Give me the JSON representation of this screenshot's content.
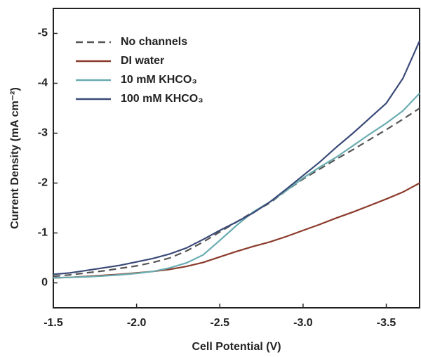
{
  "chart_data": {
    "type": "line",
    "x_label": "Cell Potential (V)",
    "y_label": "Current Density (mA cm⁻²)",
    "x": [
      -1.5,
      -1.6,
      -1.7,
      -1.8,
      -1.9,
      -2.0,
      -2.1,
      -2.2,
      -2.3,
      -2.4,
      -2.5,
      -2.6,
      -2.7,
      -2.8,
      -2.9,
      -3.0,
      -3.1,
      -3.2,
      -3.3,
      -3.4,
      -3.5,
      -3.6,
      -3.7
    ],
    "series": [
      {
        "name": "No channels",
        "color": "#555555",
        "linestyle": "dashed",
        "values": [
          -0.13,
          -0.16,
          -0.2,
          -0.24,
          -0.29,
          -0.34,
          -0.41,
          -0.5,
          -0.64,
          -0.82,
          -1.02,
          -1.22,
          -1.42,
          -1.6,
          -1.85,
          -2.08,
          -2.28,
          -2.48,
          -2.67,
          -2.87,
          -3.07,
          -3.28,
          -3.5
        ]
      },
      {
        "name": "DI water",
        "color": "#8b3a2a",
        "linestyle": "solid",
        "values": [
          -0.1,
          -0.11,
          -0.13,
          -0.15,
          -0.17,
          -0.2,
          -0.23,
          -0.27,
          -0.33,
          -0.41,
          -0.52,
          -0.63,
          -0.73,
          -0.82,
          -0.93,
          -1.05,
          -1.17,
          -1.3,
          -1.42,
          -1.55,
          -1.68,
          -1.82,
          -2.0
        ]
      },
      {
        "name": "10 mM KHCO₃",
        "color": "#6aacb0",
        "linestyle": "solid",
        "values": [
          -0.1,
          -0.11,
          -0.12,
          -0.14,
          -0.16,
          -0.19,
          -0.23,
          -0.3,
          -0.4,
          -0.56,
          -0.85,
          -1.15,
          -1.42,
          -1.62,
          -1.85,
          -2.1,
          -2.32,
          -2.52,
          -2.75,
          -2.98,
          -3.2,
          -3.45,
          -3.8
        ]
      },
      {
        "name": "100 mM KHCO₃",
        "color": "#3a4a78",
        "linestyle": "solid",
        "values": [
          -0.17,
          -0.2,
          -0.25,
          -0.3,
          -0.35,
          -0.42,
          -0.49,
          -0.58,
          -0.7,
          -0.87,
          -1.05,
          -1.22,
          -1.4,
          -1.62,
          -1.88,
          -2.15,
          -2.42,
          -2.72,
          -3.0,
          -3.3,
          -3.6,
          -4.1,
          -4.85
        ]
      }
    ],
    "xlim": [
      -1.5,
      -3.7
    ],
    "xticks": [
      -1.5,
      {
        "value": -2,
        "label": "-2.0"
      },
      -2.5,
      {
        "value": -3,
        "label": "-3.0"
      },
      -3.5
    ],
    "ylim": [
      0.5,
      -5.5
    ],
    "yticks": [
      0,
      -1,
      -2,
      -3,
      -4,
      -5
    ],
    "legend": "upper left"
  }
}
